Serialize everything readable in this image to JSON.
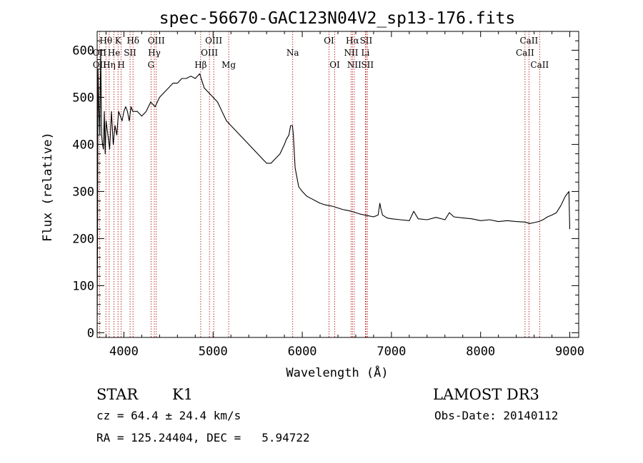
{
  "chart_data": {
    "type": "line",
    "title": "spec-56670-GAC123N04V2_sp13-176.fits",
    "xlabel": "Wavelength (Å)",
    "ylabel": "Flux (relative)",
    "xlim": [
      3700,
      9100
    ],
    "ylim": [
      -10,
      640
    ],
    "xticks": [
      4000,
      5000,
      6000,
      7000,
      8000,
      9000
    ],
    "yticks": [
      0,
      100,
      200,
      300,
      400,
      500,
      600
    ],
    "series": [
      {
        "name": "flux",
        "x": [
          3700,
          3705,
          3710,
          3720,
          3730,
          3740,
          3750,
          3760,
          3770,
          3780,
          3790,
          3800,
          3820,
          3840,
          3860,
          3880,
          3900,
          3920,
          3940,
          3960,
          3980,
          4000,
          4020,
          4040,
          4060,
          4080,
          4100,
          4150,
          4200,
          4250,
          4300,
          4350,
          4400,
          4450,
          4500,
          4550,
          4600,
          4650,
          4700,
          4750,
          4800,
          4850,
          4900,
          4950,
          5000,
          5050,
          5100,
          5150,
          5200,
          5250,
          5300,
          5350,
          5400,
          5450,
          5500,
          5550,
          5600,
          5650,
          5700,
          5750,
          5800,
          5820,
          5850,
          5870,
          5890,
          5900,
          5920,
          5940,
          5960,
          6000,
          6050,
          6100,
          6150,
          6200,
          6250,
          6300,
          6350,
          6400,
          6450,
          6500,
          6550,
          6600,
          6650,
          6700,
          6750,
          6800,
          6850,
          6870,
          6880,
          6900,
          6950,
          7000,
          7100,
          7200,
          7250,
          7300,
          7400,
          7500,
          7600,
          7650,
          7700,
          7800,
          7900,
          8000,
          8100,
          8200,
          8300,
          8400,
          8500,
          8550,
          8600,
          8650,
          8700,
          8750,
          8800,
          8850,
          8900,
          8950,
          8990,
          9000
        ],
        "values": [
          0,
          220,
          560,
          470,
          420,
          600,
          420,
          400,
          390,
          470,
          380,
          450,
          420,
          390,
          470,
          400,
          440,
          420,
          470,
          460,
          450,
          470,
          480,
          470,
          450,
          480,
          470,
          470,
          460,
          470,
          490,
          480,
          500,
          510,
          520,
          530,
          530,
          540,
          540,
          545,
          540,
          550,
          520,
          510,
          500,
          490,
          470,
          450,
          440,
          430,
          420,
          410,
          400,
          390,
          380,
          370,
          360,
          360,
          370,
          380,
          400,
          410,
          420,
          440,
          440,
          420,
          350,
          330,
          310,
          300,
          290,
          285,
          280,
          275,
          272,
          270,
          268,
          265,
          262,
          260,
          258,
          255,
          252,
          250,
          248,
          246,
          250,
          275,
          265,
          250,
          244,
          242,
          240,
          238,
          258,
          242,
          240,
          245,
          240,
          255,
          246,
          244,
          242,
          238,
          240,
          236,
          238,
          236,
          235,
          232,
          234,
          236,
          240,
          246,
          250,
          255,
          270,
          290,
          300,
          220
        ]
      }
    ],
    "spectral_lines": [
      {
        "label": "Hθ",
        "wave": 3798,
        "row": 1
      },
      {
        "label": "OII",
        "wave": 3727,
        "row": 2
      },
      {
        "label": "OII",
        "wave": 3727,
        "row": 3
      },
      {
        "label": "Hη",
        "wave": 3835,
        "row": 3
      },
      {
        "label": "He",
        "wave": 3889,
        "row": 2
      },
      {
        "label": "K",
        "wave": 3934,
        "row": 1
      },
      {
        "label": "H",
        "wave": 3969,
        "row": 3
      },
      {
        "label": "SII",
        "wave": 4069,
        "row": 2
      },
      {
        "label": "Hδ",
        "wave": 4102,
        "row": 1
      },
      {
        "label": "OIII",
        "wave": 4363,
        "row": 1
      },
      {
        "label": "Hγ",
        "wave": 4341,
        "row": 2
      },
      {
        "label": "G",
        "wave": 4304,
        "row": 3
      },
      {
        "label": "Hβ",
        "wave": 4861,
        "row": 3
      },
      {
        "label": "OIII",
        "wave": 5007,
        "row": 1
      },
      {
        "label": "OIII",
        "wave": 4959,
        "row": 2
      },
      {
        "label": "Mg",
        "wave": 5175,
        "row": 3
      },
      {
        "label": "Na",
        "wave": 5893,
        "row": 2
      },
      {
        "label": "OI",
        "wave": 6300,
        "row": 1
      },
      {
        "label": "OI",
        "wave": 6364,
        "row": 3
      },
      {
        "label": "Hα",
        "wave": 6563,
        "row": 1
      },
      {
        "label": "SII",
        "wave": 6716,
        "row": 1
      },
      {
        "label": "NII",
        "wave": 6548,
        "row": 2
      },
      {
        "label": "Li",
        "wave": 6708,
        "row": 2
      },
      {
        "label": "NII",
        "wave": 6583,
        "row": 3
      },
      {
        "label": "SII",
        "wave": 6731,
        "row": 3
      },
      {
        "label": "CaII",
        "wave": 8542,
        "row": 1
      },
      {
        "label": "CaII",
        "wave": 8498,
        "row": 2
      },
      {
        "label": "CaII",
        "wave": 8662,
        "row": 3
      }
    ]
  },
  "info": {
    "object_class": "STAR",
    "subclass": "K1",
    "survey": "LAMOST DR3",
    "redshift": "cz = 64.4 ± 24.4 km/s",
    "obs_date": "Obs-Date: 20140112",
    "coords": "RA = 125.24404, DEC =   5.94722"
  },
  "colors": {
    "line_marker": "#b00000",
    "spectrum": "#000000",
    "background": "#ffffff"
  }
}
